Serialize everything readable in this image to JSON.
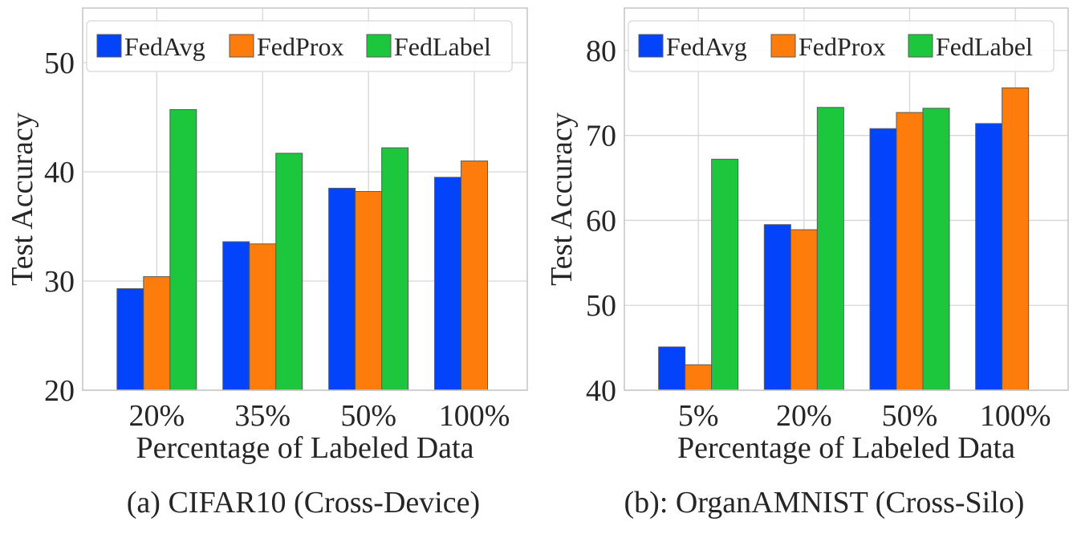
{
  "colors": {
    "FedAvg": "#0343fa",
    "FedProx": "#fe7c0b",
    "FedLabel": "#1cc63d",
    "grid": "#d6d6d6",
    "spine": "#c8c8c8",
    "bar_edge": "#5a5a5a"
  },
  "chart_data": [
    {
      "type": "bar",
      "title": "",
      "caption": "(a) CIFAR10 (Cross-Device)",
      "xlabel": "Percentage of Labeled Data",
      "ylabel": "Test Accuracy",
      "categories": [
        "20%",
        "35%",
        "50%",
        "100%"
      ],
      "ylim": [
        20,
        55
      ],
      "yticks": [
        20,
        30,
        40,
        50
      ],
      "grid": true,
      "legend_position": "top",
      "series": [
        {
          "name": "FedAvg",
          "values": [
            29.3,
            33.6,
            38.5,
            39.5
          ]
        },
        {
          "name": "FedProx",
          "values": [
            30.4,
            33.4,
            38.2,
            41.0
          ]
        },
        {
          "name": "FedLabel",
          "values": [
            45.7,
            41.7,
            42.2,
            null
          ]
        }
      ]
    },
    {
      "type": "bar",
      "title": "",
      "caption": "(b): OrganAMNIST (Cross-Silo)",
      "xlabel": "Percentage of Labeled Data",
      "ylabel": "Test Accuracy",
      "categories": [
        "5%",
        "20%",
        "50%",
        "100%"
      ],
      "ylim": [
        40,
        85
      ],
      "yticks": [
        40,
        50,
        60,
        70,
        80
      ],
      "grid": true,
      "legend_position": "top",
      "series": [
        {
          "name": "FedAvg",
          "values": [
            45.1,
            59.5,
            70.8,
            71.4
          ]
        },
        {
          "name": "FedProx",
          "values": [
            43.0,
            58.9,
            72.7,
            75.6
          ]
        },
        {
          "name": "FedLabel",
          "values": [
            67.2,
            73.3,
            73.2,
            null
          ]
        }
      ]
    }
  ]
}
